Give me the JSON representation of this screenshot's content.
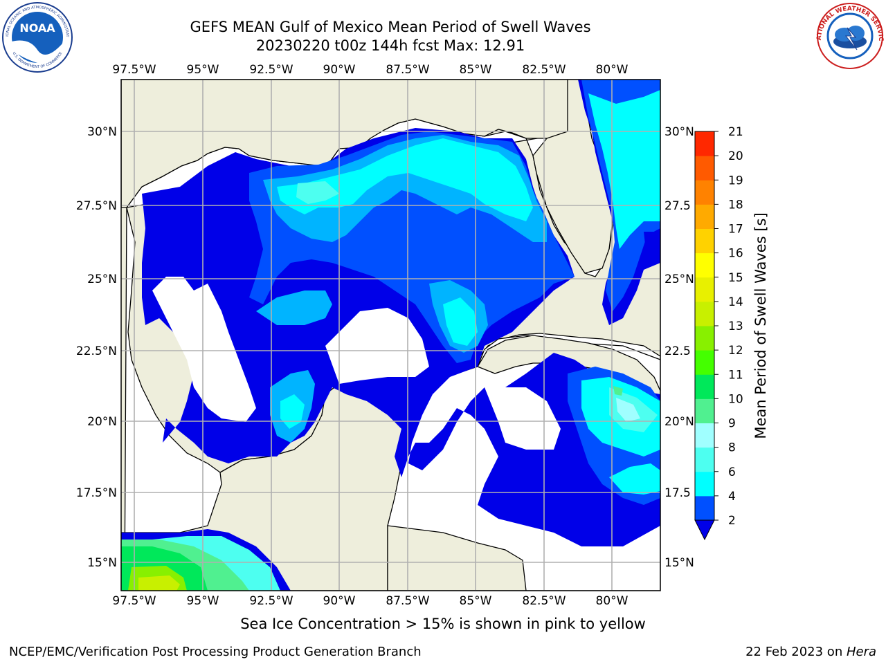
{
  "header": {
    "title_line1": "GEFS MEAN Gulf of Mexico Mean Period of Swell Waves",
    "title_line2": "20230220 t00z 144h fcst   Max: 12.91"
  },
  "logos": {
    "noaa_text": "NOAA",
    "noaa_ring_top": "NATIONAL OCEANIC AND ATMOSPHERIC ADMINISTRATION",
    "noaa_ring_bottom": "U.S. DEPARTMENT OF COMMERCE",
    "nws_ring": "NATIONAL WEATHER SERVICE"
  },
  "map": {
    "lon_ticks": [
      "97.5°W",
      "95°W",
      "92.5°W",
      "90°W",
      "87.5°W",
      "85°W",
      "82.5°W",
      "80°W"
    ],
    "lat_ticks_left": [
      "30°N",
      "27.5°N",
      "25°N",
      "22.5°N",
      "20°N",
      "17.5°N",
      "15°N"
    ],
    "lat_ticks_right": [
      "30°N",
      "27.5",
      "25°N",
      "22.5",
      "20°N",
      "17.5",
      "15°N"
    ],
    "colors": {
      "land": "#eeeedc",
      "ocean_blank": "#ffffff",
      "grid": "#b0b0b0"
    }
  },
  "colorbar": {
    "label": "Mean Period of Swell Waves [s]",
    "ticks": [
      "2",
      "4",
      "6",
      "8",
      "9",
      "10",
      "11",
      "12",
      "13",
      "14",
      "15",
      "16",
      "17",
      "18",
      "19",
      "20",
      "21"
    ],
    "colors": [
      "#0050ff",
      "#00b4ff",
      "#00ffff",
      "#4dfff0",
      "#a0ffff",
      "#50f090",
      "#00e85a",
      "#44ff00",
      "#88f000",
      "#c8f000",
      "#e8f000",
      "#ffff00",
      "#ffd200",
      "#ffaa00",
      "#ff8200",
      "#ff5a00",
      "#ff2800",
      "#ff0000"
    ],
    "extend_color": "#0000e8"
  },
  "caption": "Sea Ice Concentration > 15% is shown in pink to yellow",
  "footer": {
    "left": "NCEP/EMC/Verification Post Processing Product Generation Branch",
    "right_date": "22 Feb 2023 on ",
    "right_host": "Hera"
  }
}
